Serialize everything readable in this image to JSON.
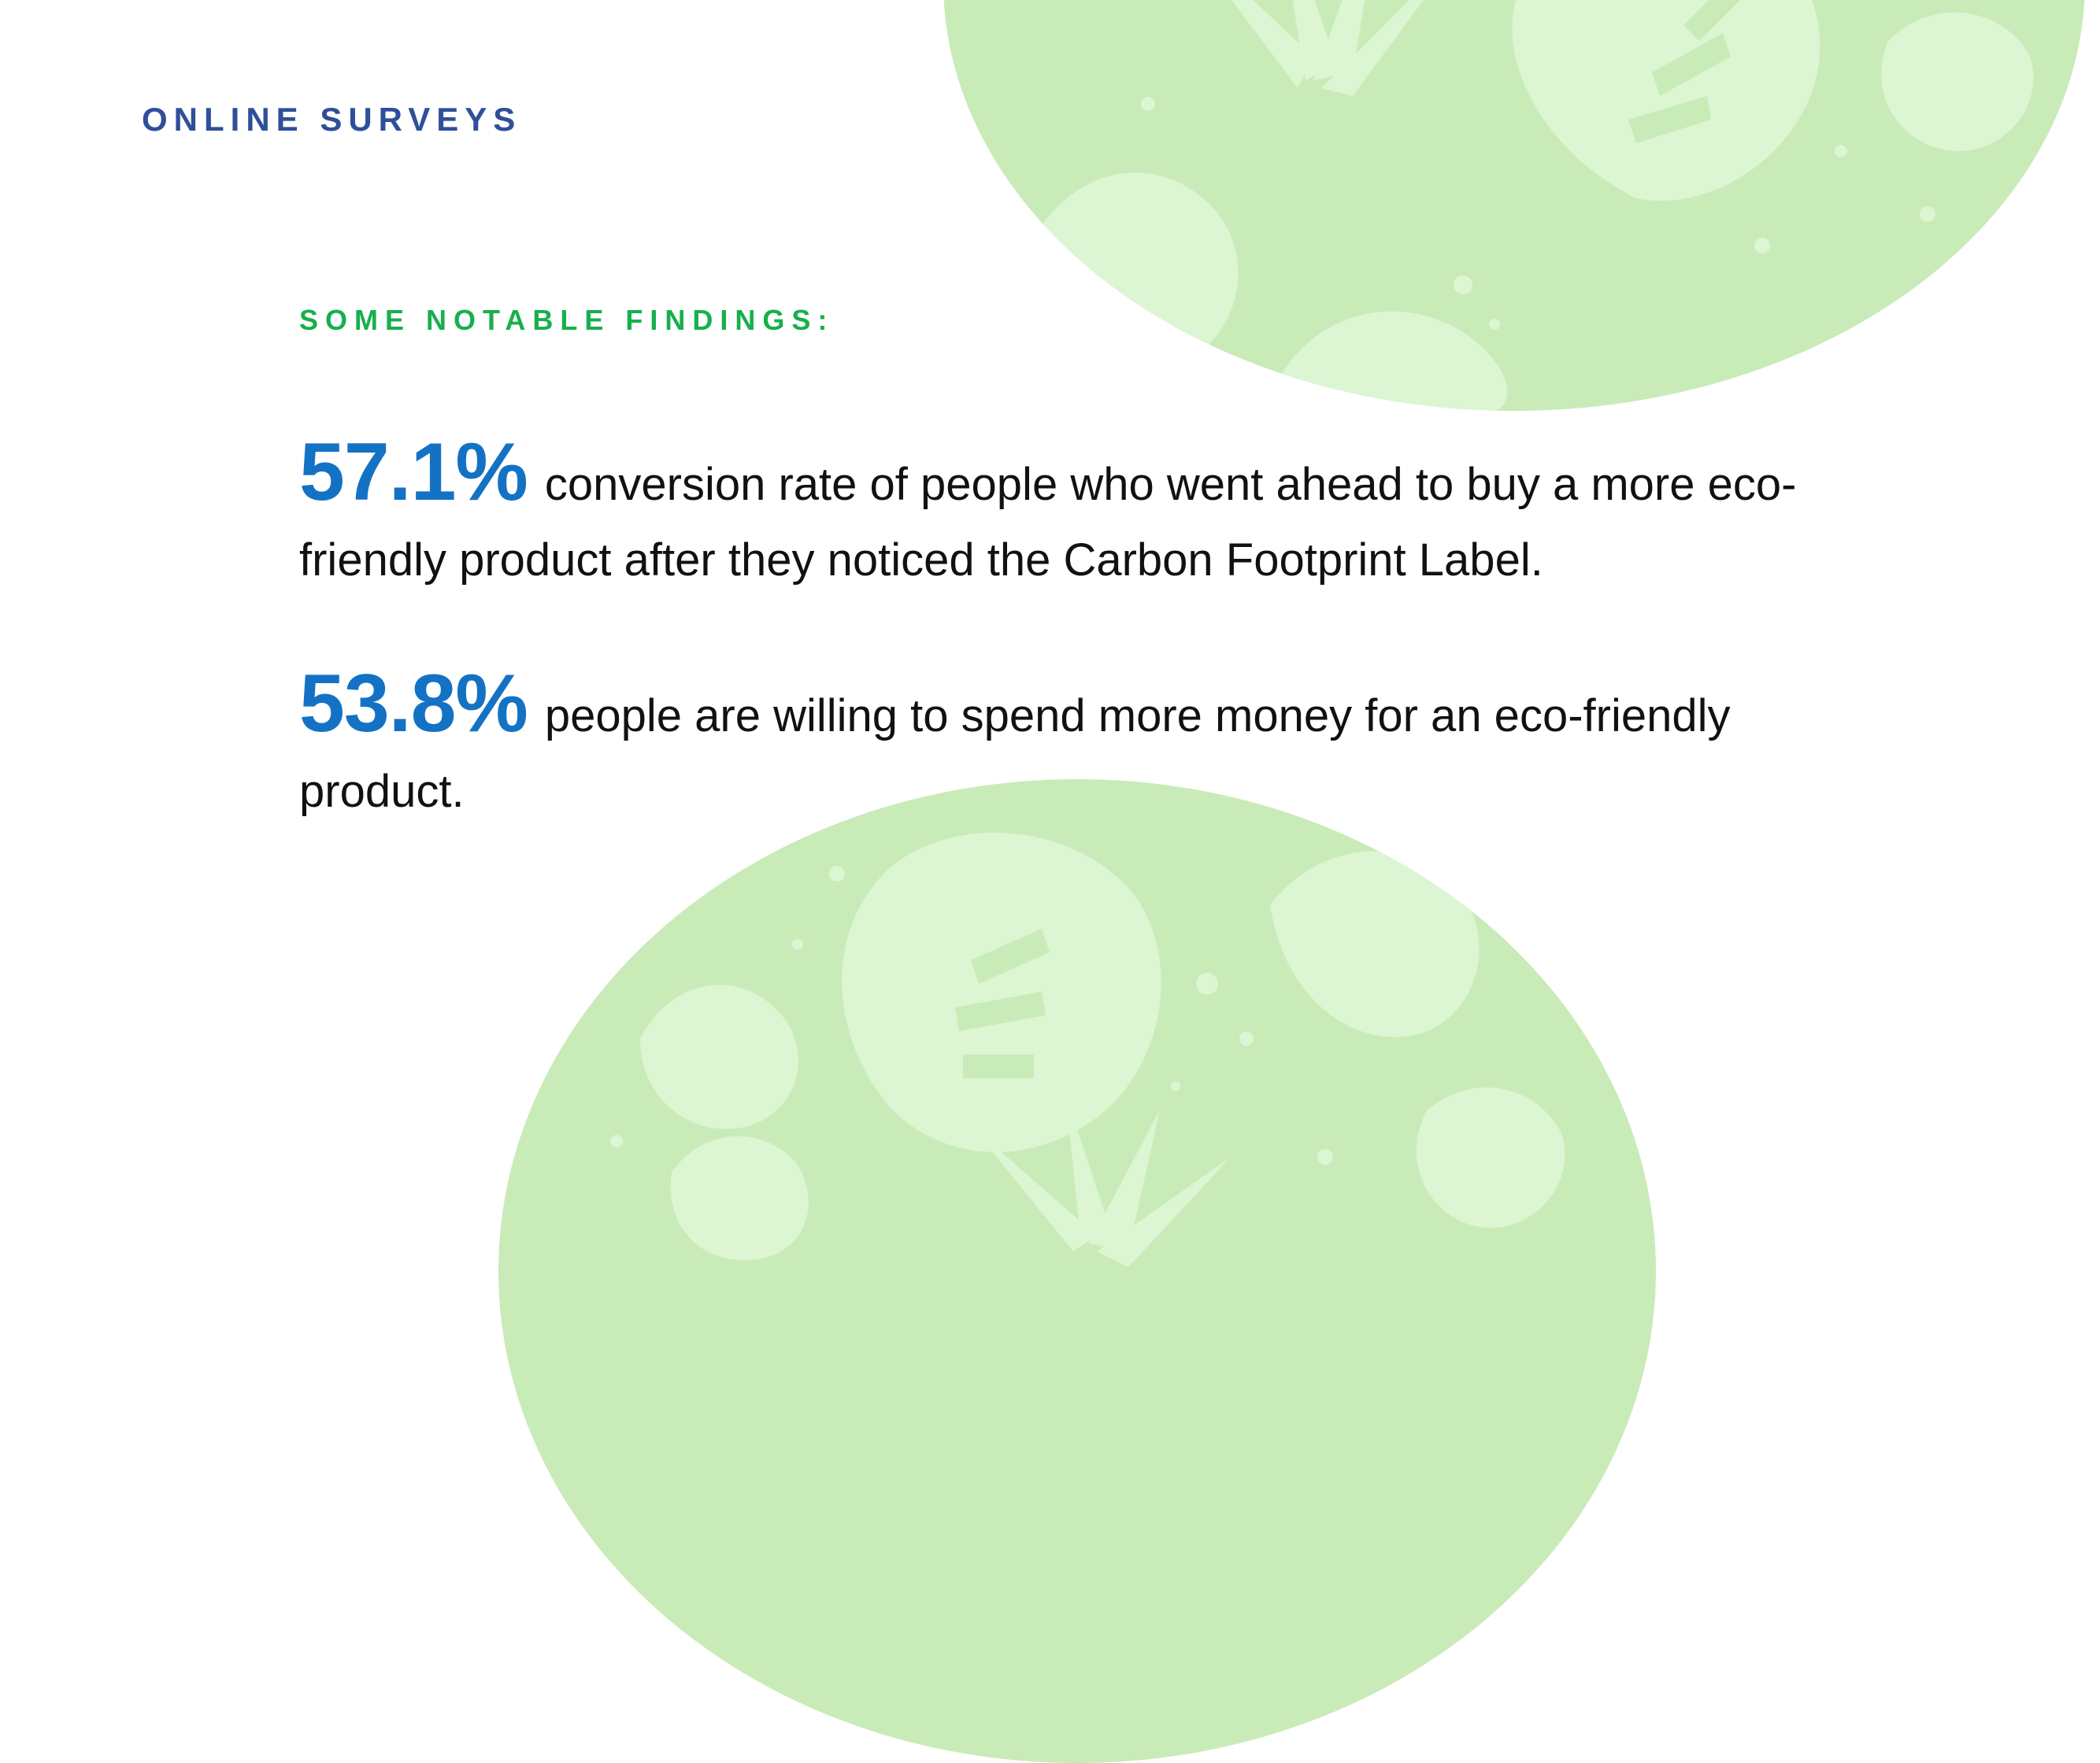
{
  "slide": {
    "kicker": "ONLINE SURVEYS",
    "subheading": "SOME NOTABLE FINDINGS:",
    "findings": [
      {
        "stat": "57.1%",
        "text": "conversion rate of people who went ahead to buy a more eco-friendly product after they noticed the Carbon Footprint Label."
      },
      {
        "stat": "53.8%",
        "text": "people are willing to spend more money for an eco-friendly product."
      }
    ]
  },
  "colors": {
    "kicker": "#2f4f9a",
    "subheading": "#17b04b",
    "stat": "#1472c4",
    "body_text": "#111111",
    "circle_fill": "#c9ebb8",
    "leaf_fill": "#dcf5d2"
  },
  "decorations": {
    "top_circle_pattern": "tropical-leaf-pattern",
    "bottom_circle_pattern": "tropical-leaf-pattern"
  }
}
